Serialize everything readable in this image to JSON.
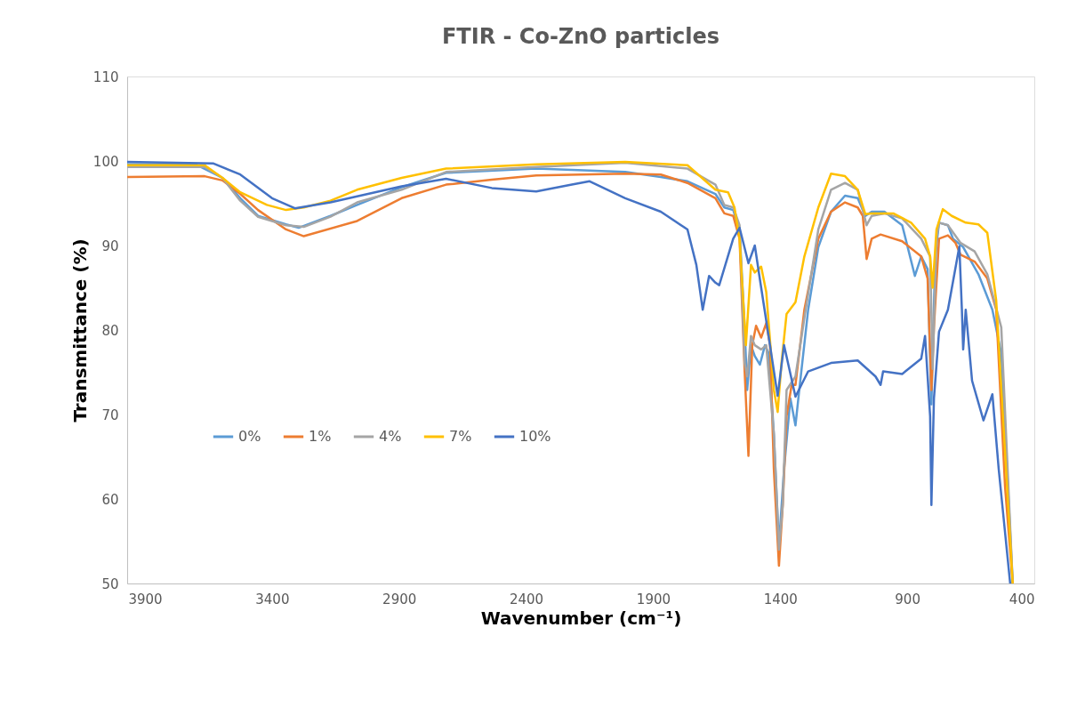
{
  "chart_data": {
    "type": "line",
    "title": "FTIR - Co-ZnO particles",
    "xlabel": "Wavenumber (cm⁻¹)",
    "ylabel": "Transmittance (%)",
    "xlim": [
      3970,
      400
    ],
    "xticks": [
      3900,
      3400,
      2900,
      2400,
      1900,
      1400,
      900,
      400
    ],
    "ylim": [
      50,
      110
    ],
    "yticks": [
      50,
      60,
      70,
      80,
      90,
      100,
      110
    ],
    "grid": false,
    "legend": "left",
    "line_style": "solid",
    "marker": "none",
    "series": [
      {
        "name": "0%",
        "color": "#5b9bd5",
        "x": [
          3970,
          3700,
          3595,
          3525,
          3455,
          3345,
          3295,
          3170,
          3065,
          2890,
          2715,
          2360,
          2010,
          1870,
          1765,
          1655,
          1620,
          1585,
          1560,
          1540,
          1530,
          1515,
          1500,
          1480,
          1460,
          1445,
          1425,
          1405,
          1385,
          1360,
          1340,
          1325,
          1290,
          1250,
          1200,
          1145,
          1095,
          1065,
          1040,
          990,
          920,
          885,
          870,
          845,
          820,
          805,
          790,
          775,
          740,
          720,
          680,
          620,
          565,
          530,
          485
        ],
        "values": [
          99.6,
          99.6,
          98.0,
          95.6,
          93.5,
          92.5,
          92.1,
          93.5,
          94.8,
          96.9,
          98.6,
          99.1,
          98.7,
          98.1,
          97.6,
          96.1,
          94.5,
          94.2,
          91.9,
          80.3,
          72.9,
          78.2,
          76.9,
          75.9,
          78.2,
          77.2,
          67.7,
          54.5,
          63.5,
          71.9,
          68.7,
          72.9,
          82.4,
          89.8,
          94.0,
          95.9,
          95.6,
          93.5,
          94.0,
          94.0,
          92.4,
          88.2,
          86.4,
          88.7,
          87.2,
          71.2,
          88.7,
          92.7,
          92.4,
          90.8,
          89.8,
          86.6,
          82.4,
          77.2,
          50
        ]
      },
      {
        "name": "1%",
        "color": "#ed7d31",
        "x": [
          3970,
          3665,
          3595,
          3525,
          3455,
          3345,
          3275,
          3065,
          2890,
          2715,
          2535,
          2360,
          2010,
          1870,
          1765,
          1655,
          1620,
          1585,
          1560,
          1540,
          1525,
          1510,
          1495,
          1475,
          1455,
          1440,
          1425,
          1405,
          1390,
          1375,
          1355,
          1340,
          1305,
          1250,
          1200,
          1145,
          1095,
          1075,
          1060,
          1040,
          1005,
          920,
          845,
          820,
          805,
          795,
          775,
          740,
          710,
          690,
          635,
          585,
          550,
          515,
          485
        ],
        "values": [
          98.1,
          98.2,
          97.7,
          96.1,
          94.2,
          91.9,
          91.1,
          92.9,
          95.6,
          97.2,
          97.8,
          98.3,
          98.5,
          98.4,
          97.4,
          95.6,
          93.8,
          93.5,
          90.8,
          75.1,
          65.1,
          78.2,
          80.5,
          79.1,
          80.8,
          78.2,
          63.5,
          52.1,
          59.3,
          69.8,
          73.5,
          73.5,
          82.4,
          90.8,
          94.0,
          95.1,
          94.5,
          93.5,
          88.4,
          90.8,
          91.3,
          90.5,
          88.7,
          86.1,
          72.9,
          80.3,
          90.8,
          91.2,
          90.3,
          88.9,
          88.1,
          86.1,
          82.4,
          61.4,
          50
        ]
      },
      {
        "name": "4%",
        "color": "#a5a5a5",
        "x": [
          3970,
          3665,
          3595,
          3525,
          3455,
          3345,
          3275,
          3170,
          3065,
          2890,
          2715,
          2360,
          2010,
          1765,
          1655,
          1620,
          1585,
          1560,
          1540,
          1530,
          1515,
          1500,
          1475,
          1455,
          1425,
          1405,
          1390,
          1375,
          1340,
          1305,
          1250,
          1200,
          1145,
          1095,
          1060,
          1040,
          990,
          920,
          845,
          810,
          800,
          785,
          775,
          740,
          690,
          635,
          585,
          530,
          485
        ],
        "values": [
          99.3,
          99.3,
          98.0,
          95.3,
          93.4,
          92.4,
          92.2,
          93.4,
          95.1,
          96.6,
          98.7,
          99.3,
          99.8,
          99.1,
          97.2,
          94.8,
          94.5,
          92.4,
          76.1,
          74.5,
          79.3,
          78.2,
          77.7,
          78.2,
          67.7,
          54.0,
          59.3,
          72.9,
          74.5,
          81.4,
          91.9,
          96.6,
          97.4,
          96.6,
          92.4,
          93.5,
          93.8,
          93.2,
          90.8,
          88.7,
          75.4,
          90.8,
          92.7,
          92.4,
          90.3,
          89.3,
          86.6,
          80.3,
          50
        ]
      },
      {
        "name": "7%",
        "color": "#ffc000",
        "x": [
          3970,
          3665,
          3595,
          3525,
          3420,
          3345,
          3275,
          3170,
          3065,
          2890,
          2715,
          2360,
          2010,
          1765,
          1655,
          1605,
          1580,
          1560,
          1535,
          1515,
          1500,
          1475,
          1455,
          1425,
          1410,
          1395,
          1375,
          1340,
          1305,
          1250,
          1200,
          1145,
          1095,
          1065,
          1040,
          955,
          885,
          830,
          810,
          800,
          785,
          760,
          725,
          670,
          620,
          585,
          550,
          485
        ],
        "values": [
          99.5,
          99.5,
          98.0,
          96.3,
          94.8,
          94.2,
          94.5,
          95.3,
          96.6,
          98.0,
          99.1,
          99.6,
          99.9,
          99.5,
          96.6,
          96.3,
          94.5,
          90.8,
          78.2,
          87.7,
          86.8,
          87.5,
          84.5,
          72.9,
          70.3,
          76.1,
          81.9,
          83.3,
          88.7,
          94.5,
          98.5,
          98.2,
          96.6,
          93.7,
          93.8,
          93.8,
          92.7,
          90.8,
          88.7,
          85.0,
          91.9,
          94.3,
          93.5,
          92.7,
          92.5,
          91.5,
          83.5,
          50
        ]
      },
      {
        "name": "10%",
        "color": "#4472c4",
        "x": [
          3970,
          3630,
          3525,
          3400,
          3310,
          3170,
          2890,
          2715,
          2535,
          2360,
          2220,
          2150,
          2010,
          1870,
          1765,
          1730,
          1705,
          1680,
          1655,
          1640,
          1585,
          1560,
          1525,
          1500,
          1480,
          1455,
          1410,
          1385,
          1340,
          1290,
          1200,
          1095,
          1025,
          1005,
          995,
          920,
          845,
          830,
          810,
          805,
          795,
          775,
          740,
          695,
          685,
          680,
          670,
          645,
          600,
          565,
          540,
          495
        ],
        "values": [
          99.9,
          99.7,
          98.4,
          95.6,
          94.4,
          95.1,
          97.0,
          97.9,
          96.8,
          96.4,
          97.2,
          97.6,
          95.6,
          94.0,
          91.9,
          87.7,
          82.4,
          86.4,
          85.6,
          85.3,
          90.8,
          92.1,
          87.9,
          90.0,
          86.0,
          81.1,
          72.2,
          78.2,
          72.1,
          75.1,
          76.1,
          76.4,
          74.5,
          73.5,
          75.1,
          74.8,
          76.6,
          79.3,
          69.8,
          59.3,
          71.9,
          79.8,
          82.4,
          89.9,
          82.4,
          77.7,
          82.4,
          74.0,
          69.3,
          72.4,
          63.5,
          50
        ]
      }
    ]
  }
}
